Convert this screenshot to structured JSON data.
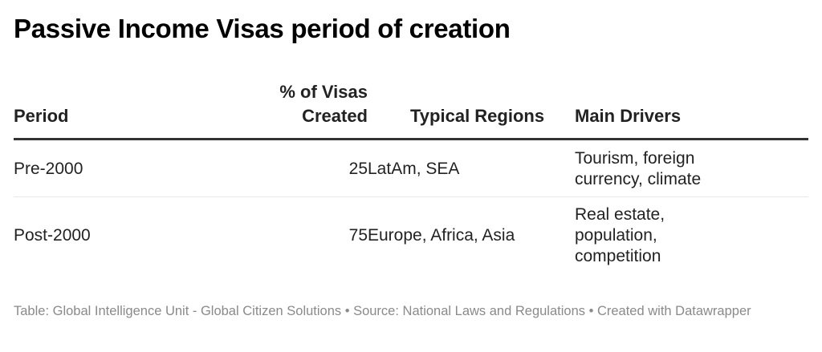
{
  "title": "Passive Income Visas period of creation",
  "table": {
    "headers": {
      "period": "Period",
      "pct_line1": "% of Visas",
      "pct_line2": "Created",
      "regions": "Typical Regions",
      "drivers": "Main Drivers"
    },
    "rows": [
      {
        "period": "Pre-2000",
        "pct": "25",
        "regions": "LatAm, SEA",
        "drivers": "Tourism, foreign currency, climate"
      },
      {
        "period": "Post-2000",
        "pct": "75",
        "regions": "Europe, Africa, Asia",
        "drivers": "Real estate, population, competition"
      }
    ]
  },
  "footer": {
    "text": "Table: Global Intelligence Unit - Global Citizen Solutions • Source: National Laws and Regulations • Created with Datawrapper"
  },
  "colors": {
    "title": "#000000",
    "body_text": "#222222",
    "header_rule": "#333333",
    "row_divider": "#e8e8e8",
    "footer_text": "#8a8a8a"
  },
  "chart_data": {
    "type": "table",
    "title": "Passive Income Visas period of creation",
    "columns": [
      "Period",
      "% of Visas Created",
      "Typical Regions",
      "Main Drivers"
    ],
    "rows": [
      [
        "Pre-2000",
        25,
        "LatAm, SEA",
        "Tourism, foreign currency, climate"
      ],
      [
        "Post-2000",
        75,
        "Europe, Africa, Asia",
        "Real estate, population, competition"
      ]
    ],
    "categories": [
      "Pre-2000",
      "Post-2000"
    ],
    "values": [
      25,
      75
    ],
    "source": "Table: Global Intelligence Unit - Global Citizen Solutions • Source: National Laws and Regulations • Created with Datawrapper",
    "grid": false
  }
}
